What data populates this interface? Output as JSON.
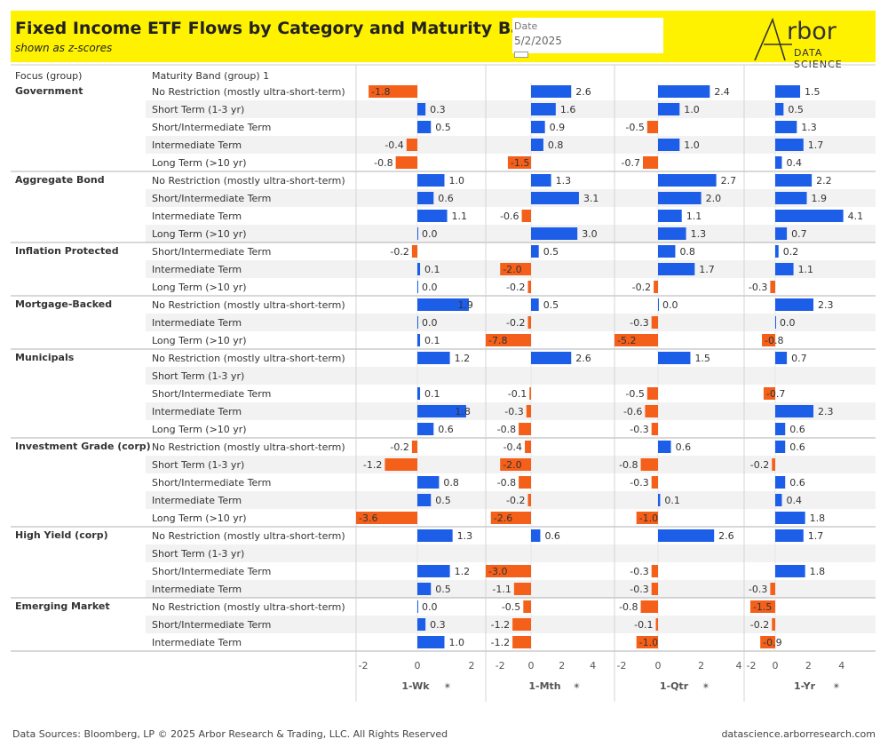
{
  "header": {
    "title": "Fixed Income ETF Flows by Category and Maturity Band",
    "subtitle": "shown as z-scores",
    "date_label": "Date",
    "date_value": "5/2/2025",
    "logo_text": "rbor",
    "logo_sub": "DATA SCIENCE"
  },
  "footer": {
    "left": "Data Sources: Bloomberg, LP © 2025 Arbor Research & Trading, LLC. All Rights Reserved",
    "right": "datascience.arborresearch.com"
  },
  "colors": {
    "positive": "#1c5ee8",
    "negative": "#f4601a",
    "header_bg": "#fff200",
    "stripe": "#f2f2f2"
  },
  "chart_data": {
    "type": "bar",
    "orientation": "horizontal",
    "column_headers": [
      "Focus (group)",
      "Maturity Band (group) 1"
    ],
    "panels": [
      {
        "name": "1-Wk",
        "ticks": [
          -2,
          0,
          2
        ],
        "xlim": [
          -2.1,
          2.1
        ]
      },
      {
        "name": "1-Mth",
        "ticks": [
          -2,
          0,
          2,
          4
        ],
        "xlim": [
          -2.0,
          4.0
        ]
      },
      {
        "name": "1-Qtr",
        "ticks": [
          -2,
          0,
          2,
          4
        ],
        "xlim": [
          -2.0,
          4.0
        ]
      },
      {
        "name": "1-Yr",
        "ticks": [
          -2,
          0,
          2,
          4
        ],
        "xlim": [
          -1.5,
          4.5
        ]
      }
    ],
    "groups": [
      {
        "name": "Government",
        "rows": [
          {
            "band": "No Restriction (mostly ultra-short-term)",
            "values": [
              -1.8,
              2.6,
              2.4,
              1.5
            ]
          },
          {
            "band": "Short Term (1-3 yr)",
            "values": [
              0.3,
              1.6,
              1.0,
              0.5
            ]
          },
          {
            "band": "Short/Intermediate Term",
            "values": [
              0.5,
              0.9,
              -0.5,
              1.3
            ]
          },
          {
            "band": "Intermediate Term",
            "values": [
              -0.4,
              0.8,
              1.0,
              1.7
            ]
          },
          {
            "band": "Long Term (>10 yr)",
            "values": [
              -0.8,
              -1.5,
              -0.7,
              0.4
            ]
          }
        ]
      },
      {
        "name": "Aggregate Bond",
        "rows": [
          {
            "band": "No Restriction (mostly ultra-short-term)",
            "values": [
              1.0,
              1.3,
              2.7,
              2.2
            ]
          },
          {
            "band": "Short/Intermediate Term",
            "values": [
              0.6,
              3.1,
              2.0,
              1.9
            ]
          },
          {
            "band": "Intermediate Term",
            "values": [
              1.1,
              -0.6,
              1.1,
              4.1
            ]
          },
          {
            "band": "Long Term (>10 yr)",
            "values": [
              0.0,
              3.0,
              1.3,
              0.7
            ]
          }
        ]
      },
      {
        "name": "Inflation Protected",
        "rows": [
          {
            "band": "Short/Intermediate Term",
            "values": [
              -0.2,
              0.5,
              0.8,
              0.2
            ]
          },
          {
            "band": "Intermediate Term",
            "values": [
              0.1,
              -2.0,
              1.7,
              1.1
            ]
          },
          {
            "band": "Long Term (>10 yr)",
            "values": [
              0.0,
              -0.2,
              -0.2,
              -0.3
            ]
          }
        ]
      },
      {
        "name": "Mortgage-Backed",
        "rows": [
          {
            "band": "No Restriction (mostly ultra-short-term)",
            "values": [
              1.9,
              0.5,
              0.0,
              2.3
            ]
          },
          {
            "band": "Intermediate Term",
            "values": [
              0.0,
              -0.2,
              -0.3,
              0.0
            ]
          },
          {
            "band": "Long Term (>10 yr)",
            "values": [
              0.1,
              -7.8,
              -5.2,
              -0.8
            ]
          }
        ]
      },
      {
        "name": "Municipals",
        "rows": [
          {
            "band": "No Restriction (mostly ultra-short-term)",
            "values": [
              1.2,
              2.6,
              1.5,
              0.7
            ]
          },
          {
            "band": "Short Term (1-3 yr)",
            "values": [
              null,
              null,
              null,
              null
            ]
          },
          {
            "band": "Short/Intermediate Term",
            "values": [
              0.1,
              -0.1,
              -0.5,
              -0.7
            ]
          },
          {
            "band": "Intermediate Term",
            "values": [
              1.8,
              -0.3,
              -0.6,
              2.3
            ]
          },
          {
            "band": "Long Term (>10 yr)",
            "values": [
              0.6,
              -0.8,
              -0.3,
              0.6
            ]
          }
        ]
      },
      {
        "name": "Investment Grade (corp)",
        "rows": [
          {
            "band": "No Restriction (mostly ultra-short-term)",
            "values": [
              -0.2,
              -0.4,
              0.6,
              0.6
            ]
          },
          {
            "band": "Short Term (1-3 yr)",
            "values": [
              -1.2,
              -2.0,
              -0.8,
              -0.2
            ]
          },
          {
            "band": "Short/Intermediate Term",
            "values": [
              0.8,
              -0.8,
              -0.3,
              0.6
            ]
          },
          {
            "band": "Intermediate Term",
            "values": [
              0.5,
              -0.2,
              0.1,
              0.4
            ]
          },
          {
            "band": "Long Term (>10 yr)",
            "values": [
              -3.6,
              -2.6,
              -1.0,
              1.8
            ]
          }
        ]
      },
      {
        "name": "High Yield (corp)",
        "rows": [
          {
            "band": "No Restriction (mostly ultra-short-term)",
            "values": [
              1.3,
              0.6,
              2.6,
              1.7
            ]
          },
          {
            "band": "Short Term (1-3 yr)",
            "values": [
              null,
              null,
              null,
              null
            ]
          },
          {
            "band": "Short/Intermediate Term",
            "values": [
              1.2,
              -3.0,
              -0.3,
              1.8
            ]
          },
          {
            "band": "Intermediate Term",
            "values": [
              0.5,
              -1.1,
              -0.3,
              -0.3
            ]
          }
        ]
      },
      {
        "name": "Emerging Market",
        "rows": [
          {
            "band": "No Restriction (mostly ultra-short-term)",
            "values": [
              0.0,
              -0.5,
              -0.8,
              -1.5
            ]
          },
          {
            "band": "Short/Intermediate Term",
            "values": [
              0.3,
              -1.2,
              -0.1,
              -0.2
            ]
          },
          {
            "band": "Intermediate Term",
            "values": [
              1.0,
              -1.2,
              -1.0,
              -0.9
            ]
          }
        ]
      }
    ]
  }
}
